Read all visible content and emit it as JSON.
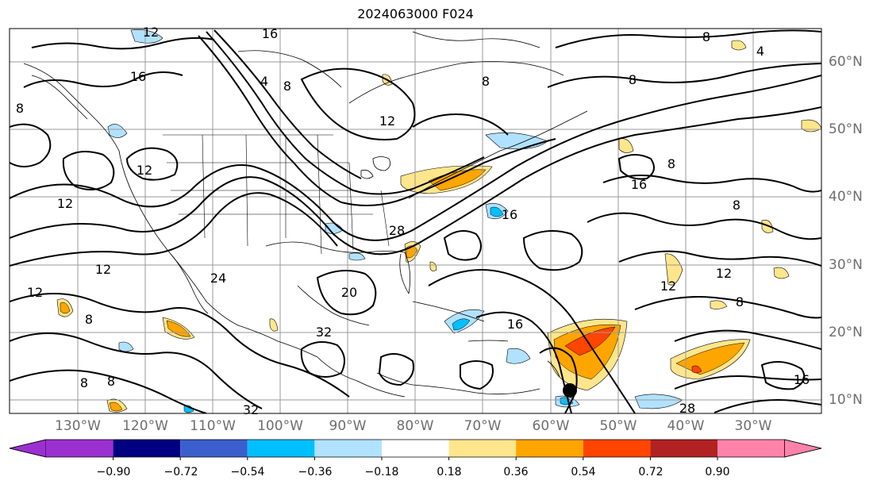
{
  "title": "2024063000 F024",
  "lon_labels": [
    "130°W",
    "120°W",
    "110°W",
    "100°W",
    "90°W",
    "80°W",
    "70°W",
    "60°W",
    "50°W",
    "40°W",
    "30°W"
  ],
  "lat_labels": [
    "60°N",
    "50°N",
    "40°N",
    "30°N",
    "20°N",
    "10°N"
  ],
  "contour_labels": [
    "12",
    "16",
    "8",
    "12",
    "8",
    "4",
    "12",
    "8",
    "12",
    "16",
    "8",
    "4",
    "8",
    "8",
    "8",
    "16",
    "16",
    "28",
    "24",
    "20",
    "32",
    "16",
    "12",
    "12",
    "8",
    "8",
    "16",
    "28",
    "8",
    "8",
    "32",
    "12",
    "12"
  ],
  "colorbar": {
    "ticks": [
      "−0.90",
      "−0.72",
      "−0.54",
      "−0.36",
      "−0.18",
      "0.18",
      "0.36",
      "0.54",
      "0.72",
      "0.90"
    ],
    "colors": [
      "#9b30d0",
      "#000080",
      "#3a5fcd",
      "#00bfff",
      "#b0e2ff",
      "#ffffff",
      "#ffe68c",
      "#ffa500",
      "#ff4500",
      "#b22222",
      "#ff82ab",
      "#ff82ab"
    ]
  },
  "colors": {
    "light_blue": "#b0e2ff",
    "blue": "#00bfff",
    "yellow": "#ffe68c",
    "orange": "#ffa500",
    "red": "#ff4500"
  },
  "storm_marker": "black-dot"
}
